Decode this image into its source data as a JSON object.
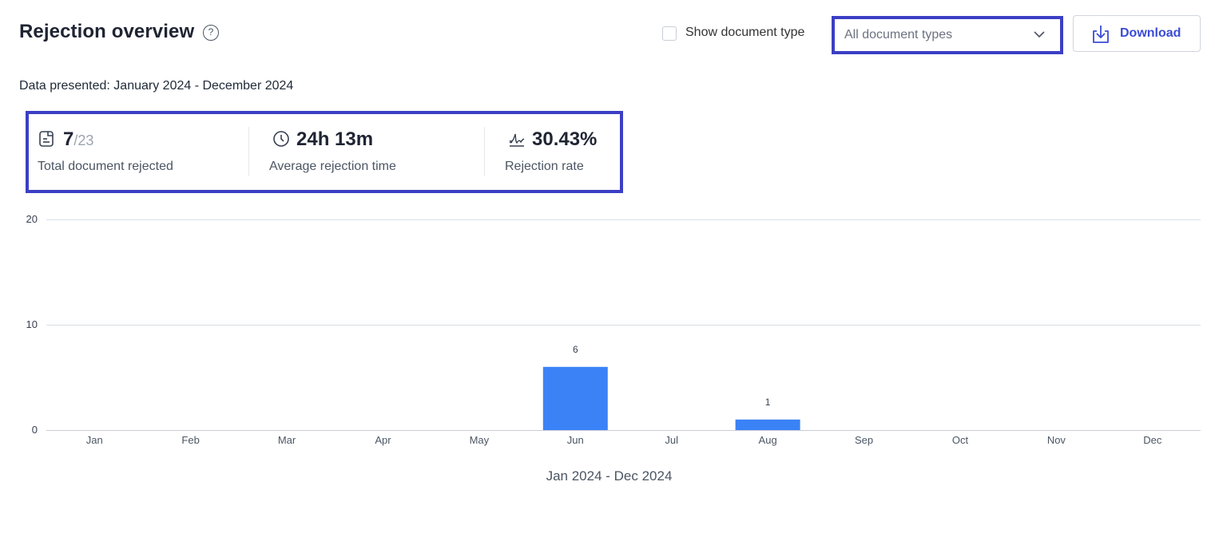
{
  "header": {
    "title": "Rejection overview",
    "help_icon": "help-circle-icon",
    "show_document_type_label": "Show document type",
    "show_document_type_checked": false,
    "document_type_select": "All document types",
    "download_label": "Download"
  },
  "data_presented": "Data presented: January 2024 - December 2024",
  "stats": [
    {
      "icon": "document-icon",
      "value": "7",
      "sub_value": "/23",
      "label": "Total document rejected"
    },
    {
      "icon": "clock-icon",
      "value": "24h 13m",
      "sub_value": "",
      "label": "Average rejection time"
    },
    {
      "icon": "signature-icon",
      "value": "30.43%",
      "sub_value": "",
      "label": "Rejection rate"
    }
  ],
  "chart_data": {
    "type": "bar",
    "categories": [
      "Jan",
      "Feb",
      "Mar",
      "Apr",
      "May",
      "Jun",
      "Jul",
      "Aug",
      "Sep",
      "Oct",
      "Nov",
      "Dec"
    ],
    "values": [
      0,
      0,
      0,
      0,
      0,
      6,
      0,
      1,
      0,
      0,
      0,
      0
    ],
    "data_labels": [
      "",
      "",
      "",
      "",
      "",
      "6",
      "",
      "1",
      "",
      "",
      "",
      ""
    ],
    "yticks": [
      "0",
      "10",
      "20"
    ],
    "ylim": [
      0,
      20
    ],
    "grid": true,
    "bar_color": "#3b82f6",
    "xlabel": "Jan 2024 - Dec 2024"
  },
  "colors": {
    "accent": "#3b3fc4",
    "link": "#3b4bd8",
    "bar": "#3b82f6"
  }
}
